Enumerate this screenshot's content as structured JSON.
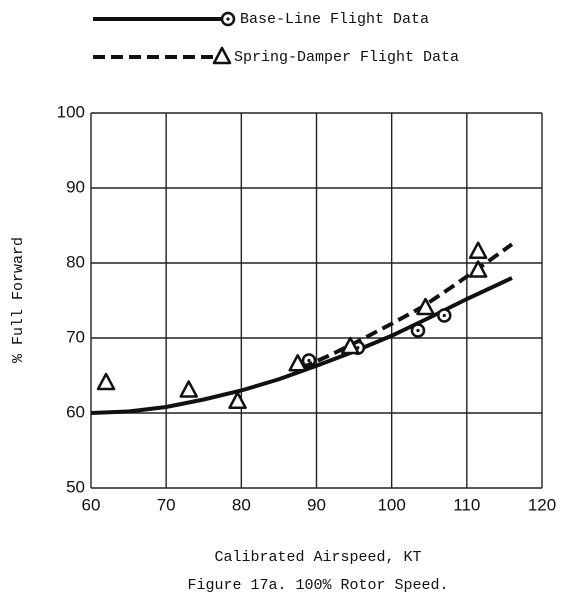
{
  "chart_data": {
    "type": "line",
    "xlabel": "Calibrated Airspeed, KT",
    "ylabel": "% Full Forward",
    "caption": "Figure 17a.  100% Rotor Speed.",
    "xlim": [
      60,
      120
    ],
    "ylim": [
      50,
      100
    ],
    "xticks": [
      60,
      70,
      80,
      90,
      100,
      110,
      120
    ],
    "yticks": [
      50,
      60,
      70,
      80,
      90,
      100
    ],
    "grid": true,
    "series": [
      {
        "name": "Base-Line Flight Data",
        "marker": "circle",
        "dashed": false,
        "color": "#111111",
        "x": [
          89,
          95.5,
          103.5,
          107
        ],
        "values": [
          67,
          68.7,
          71,
          73
        ],
        "curve_x": [
          60,
          65,
          70,
          75,
          80,
          85,
          90,
          95,
          100,
          105,
          110,
          116
        ],
        "curve_values": [
          60,
          60.2,
          60.8,
          61.8,
          63,
          64.5,
          66.3,
          68.2,
          70.3,
          72.7,
          75.2,
          78
        ]
      },
      {
        "name": "Spring-Damper Flight Data",
        "marker": "triangle",
        "dashed": true,
        "color": "#111111",
        "x": [
          62,
          73,
          79.5,
          87.5,
          94.5,
          104.5,
          111.5,
          111.5
        ],
        "values": [
          64,
          63,
          61.5,
          66.5,
          68.8,
          74,
          81.5,
          79
        ],
        "curve_x": [
          88,
          92,
          96,
          100,
          104,
          108,
          112,
          116
        ],
        "curve_values": [
          66,
          67.8,
          69.8,
          71.9,
          74.1,
          76.8,
          79.6,
          82.5
        ]
      }
    ]
  }
}
